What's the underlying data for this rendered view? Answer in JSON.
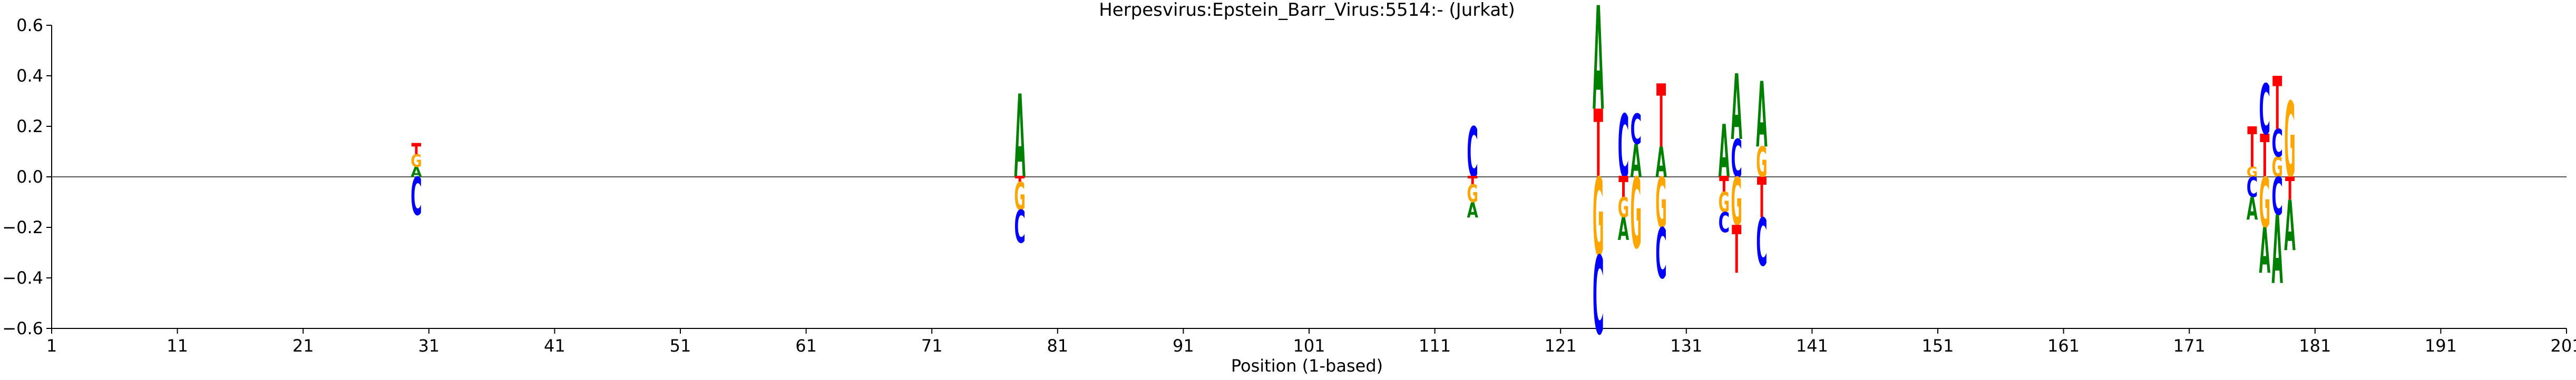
{
  "chart_data": {
    "type": "sequence-logo",
    "title": "Herpesvirus:Epstein_Barr_Virus:5514:-  (Jurkat)",
    "xlabel": "Position (1-based)",
    "ylabel": "",
    "xlim": [
      1,
      201
    ],
    "ylim": [
      -0.6,
      0.6
    ],
    "x_ticks": [
      1,
      11,
      21,
      31,
      41,
      51,
      61,
      71,
      81,
      91,
      101,
      111,
      121,
      131,
      141,
      151,
      161,
      171,
      181,
      191,
      201
    ],
    "y_ticks": [
      -0.6,
      -0.4,
      -0.2,
      0.0,
      0.2,
      0.4,
      0.6
    ],
    "y_tick_labels": [
      "−0.6",
      "−0.4",
      "−0.2",
      "0.0",
      "0.2",
      "0.4",
      "0.6"
    ],
    "grid": false,
    "colors": {
      "A": "#008000",
      "C": "#0000ff",
      "G": "#ffa500",
      "T": "#ff0000"
    },
    "positions": [
      {
        "pos": 30,
        "up": [
          [
            "A",
            0.04
          ],
          [
            "G",
            0.05
          ],
          [
            "T",
            0.04
          ]
        ],
        "down": [
          [
            "C",
            0.15
          ]
        ]
      },
      {
        "pos": 78,
        "up": [
          [
            "A",
            0.33
          ]
        ],
        "down": [
          [
            "T",
            0.02
          ],
          [
            "G",
            0.11
          ],
          [
            "C",
            0.13
          ]
        ]
      },
      {
        "pos": 114,
        "up": [
          [
            "C",
            0.2
          ]
        ],
        "down": [
          [
            "T",
            0.03
          ],
          [
            "G",
            0.07
          ],
          [
            "A",
            0.06
          ]
        ]
      },
      {
        "pos": 124,
        "up": [
          [
            "T",
            0.27
          ],
          [
            "A",
            0.41
          ]
        ],
        "down": [
          [
            "G",
            0.31
          ],
          [
            "C",
            0.31
          ]
        ]
      },
      {
        "pos": 126,
        "up": [
          [
            "C",
            0.25
          ]
        ],
        "down": [
          [
            "T",
            0.08
          ],
          [
            "G",
            0.08
          ],
          [
            "A",
            0.09
          ]
        ]
      },
      {
        "pos": 127,
        "up": [
          [
            "A",
            0.13
          ],
          [
            "C",
            0.12
          ]
        ],
        "down": [
          [
            "G",
            0.28
          ]
        ]
      },
      {
        "pos": 129,
        "up": [
          [
            "A",
            0.12
          ],
          [
            "T",
            0.25
          ]
        ],
        "down": [
          [
            "G",
            0.2
          ],
          [
            "C",
            0.2
          ]
        ]
      },
      {
        "pos": 134,
        "up": [
          [
            "A",
            0.21
          ]
        ],
        "down": [
          [
            "T",
            0.06
          ],
          [
            "G",
            0.08
          ],
          [
            "C",
            0.08
          ]
        ]
      },
      {
        "pos": 135,
        "up": [
          [
            "C",
            0.15
          ],
          [
            "A",
            0.26
          ]
        ],
        "down": [
          [
            "G",
            0.19
          ],
          [
            "T",
            0.19
          ]
        ]
      },
      {
        "pos": 137,
        "up": [
          [
            "G",
            0.12
          ],
          [
            "A",
            0.26
          ]
        ],
        "down": [
          [
            "T",
            0.16
          ],
          [
            "C",
            0.19
          ]
        ]
      },
      {
        "pos": 176,
        "up": [
          [
            "G",
            0.04
          ],
          [
            "T",
            0.16
          ]
        ],
        "down": [
          [
            "C",
            0.08
          ],
          [
            "A",
            0.09
          ]
        ]
      },
      {
        "pos": 177,
        "up": [
          [
            "T",
            0.17
          ],
          [
            "C",
            0.2
          ]
        ],
        "down": [
          [
            "G",
            0.2
          ],
          [
            "A",
            0.18
          ]
        ]
      },
      {
        "pos": 178,
        "up": [
          [
            "G",
            0.08
          ],
          [
            "C",
            0.11
          ],
          [
            "T",
            0.21
          ]
        ],
        "down": [
          [
            "C",
            0.15
          ],
          [
            "A",
            0.27
          ]
        ]
      },
      {
        "pos": 179,
        "up": [
          [
            "G",
            0.3
          ]
        ],
        "down": [
          [
            "T",
            0.09
          ],
          [
            "A",
            0.2
          ]
        ]
      }
    ]
  }
}
